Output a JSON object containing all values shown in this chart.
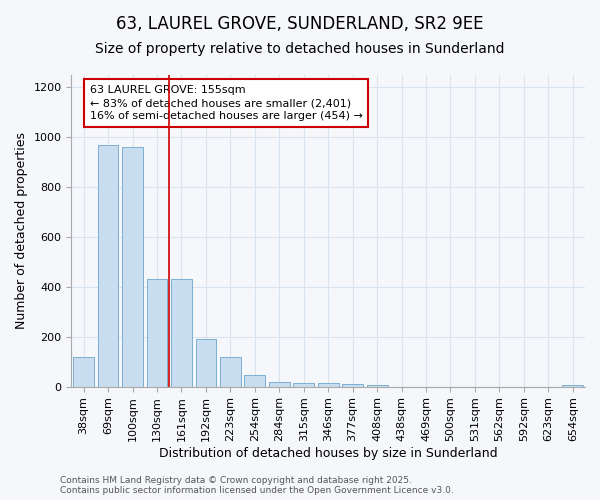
{
  "title1": "63, LAUREL GROVE, SUNDERLAND, SR2 9EE",
  "title2": "Size of property relative to detached houses in Sunderland",
  "xlabel": "Distribution of detached houses by size in Sunderland",
  "ylabel": "Number of detached properties",
  "categories": [
    "38sqm",
    "69sqm",
    "100sqm",
    "130sqm",
    "161sqm",
    "192sqm",
    "223sqm",
    "254sqm",
    "284sqm",
    "315sqm",
    "346sqm",
    "377sqm",
    "408sqm",
    "438sqm",
    "469sqm",
    "500sqm",
    "531sqm",
    "562sqm",
    "592sqm",
    "623sqm",
    "654sqm"
  ],
  "values": [
    120,
    970,
    960,
    430,
    430,
    190,
    120,
    45,
    20,
    15,
    15,
    10,
    5,
    0,
    0,
    0,
    0,
    0,
    0,
    0,
    5
  ],
  "bar_color": "#c9ddf0",
  "bar_edge_color": "#7bafd4",
  "red_line_x": 3.5,
  "annotation_title": "63 LAUREL GROVE: 155sqm",
  "annotation_line1": "← 83% of detached houses are smaller (2,401)",
  "annotation_line2": "16% of semi-detached houses are larger (454) →",
  "annotation_box_facecolor": "#ffffff",
  "annotation_border_color": "#cc0000",
  "footer1": "Contains HM Land Registry data © Crown copyright and database right 2025.",
  "footer2": "Contains public sector information licensed under the Open Government Licence v3.0.",
  "ylim": [
    0,
    1250
  ],
  "yticks": [
    0,
    200,
    400,
    600,
    800,
    1000,
    1200
  ],
  "background_color": "#f5f7fa",
  "grid_color": "#d8e4f0",
  "title1_fontsize": 12,
  "title2_fontsize": 10,
  "annotation_fontsize": 8,
  "axis_label_fontsize": 9,
  "tick_fontsize": 8,
  "footer_fontsize": 6.5
}
